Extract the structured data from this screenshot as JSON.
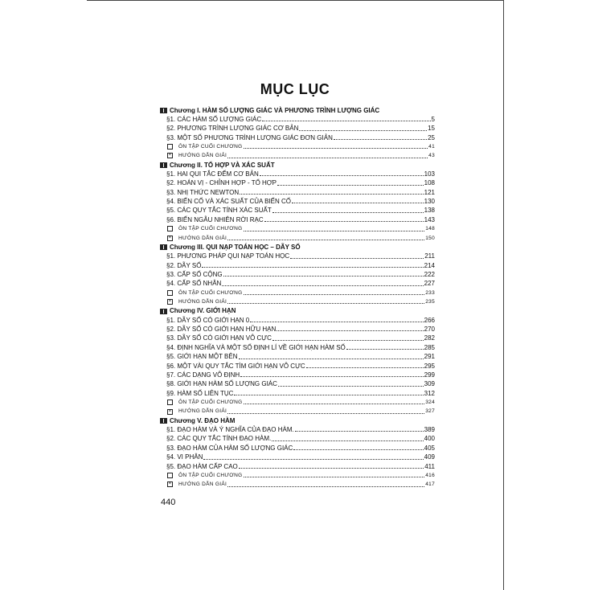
{
  "title": "MỤC LỤC",
  "page_number": "440",
  "chapters": [
    {
      "title": "Chương I. HÀM SỐ LƯỢNG GIÁC VÀ PHƯƠNG TRÌNH LƯỢNG GIÁC",
      "entries": [
        {
          "type": "section",
          "label": "§1. CÁC HÀM SỐ LƯỢNG GIÁC",
          "page": "5"
        },
        {
          "type": "section",
          "label": "§2. PHƯƠNG TRÌNH LƯỢNG GIÁC CƠ BẢN",
          "page": "15"
        },
        {
          "type": "section",
          "label": "§3. MỘT SỐ PHƯƠNG TRÌNH LƯỢNG GIÁC ĐƠN GIẢN",
          "page": "25"
        },
        {
          "type": "review",
          "label": "ÔN TẬP CUỐI CHƯƠNG",
          "page": "41"
        },
        {
          "type": "solution",
          "label": "HƯỚNG DẪN GIẢI",
          "page": "43"
        }
      ]
    },
    {
      "title": "Chương II. TỔ HỢP VÀ XÁC SUẤT",
      "entries": [
        {
          "type": "section",
          "label": "§1. HAI QUI TẮC ĐẾM CƠ BẢN",
          "page": "103"
        },
        {
          "type": "section",
          "label": "§2. HOÁN VỊ - CHỈNH HỢP - TỔ HỢP",
          "page": "108"
        },
        {
          "type": "section",
          "label": "§3. NHỊ THỨC NEWTON",
          "page": "121"
        },
        {
          "type": "section",
          "label": "§4. BIẾN CỐ VÀ XÁC SUẤT CỦA BIẾN CỐ",
          "page": "130"
        },
        {
          "type": "section",
          "label": "§5. CÁC QUY TẮC TÍNH XÁC SUẤT",
          "page": "138"
        },
        {
          "type": "section",
          "label": "§6. BIẾN NGẪU NHIÊN RỜI RẠC",
          "page": "143"
        },
        {
          "type": "review",
          "label": "ÔN TẬP CUỐI CHƯƠNG",
          "page": "148"
        },
        {
          "type": "solution",
          "label": "HƯỚNG DẪN GIẢI",
          "page": "150"
        }
      ]
    },
    {
      "title": "Chương III. QUI NẠP TOÁN HỌC – DÃY SỐ",
      "entries": [
        {
          "type": "section",
          "label": "§1. PHƯƠNG PHÁP QUI NẠP TOÁN HỌC",
          "page": "211"
        },
        {
          "type": "section",
          "label": "§2. DÃY SỐ",
          "page": "214"
        },
        {
          "type": "section",
          "label": "§3. CẤP SỐ CỘNG",
          "page": "222"
        },
        {
          "type": "section",
          "label": "§4. CẤP SỐ NHÂN",
          "page": "227"
        },
        {
          "type": "review",
          "label": "ÔN TẬP CUỐI CHƯƠNG",
          "page": "233"
        },
        {
          "type": "solution",
          "label": "HƯỚNG DẪN GIẢI",
          "page": "235"
        }
      ]
    },
    {
      "title": "Chương IV. GIỚI HẠN",
      "entries": [
        {
          "type": "section",
          "label": "§1. DÃY SỐ CÓ GIỚI HẠN 0",
          "page": "266"
        },
        {
          "type": "section",
          "label": "§2. DÃY SỐ CÓ GIỚI HẠN HỮU HẠN",
          "page": "270"
        },
        {
          "type": "section",
          "label": "§3. DÃY SỐ CÓ GIỚI HẠN VÔ CỰC",
          "page": "282"
        },
        {
          "type": "section",
          "label": "§4. ĐỊNH NGHĨA VÀ MỘT SỐ ĐỊNH LÍ VỀ GIỚI HẠN HÀM SỐ",
          "page": "285"
        },
        {
          "type": "section",
          "label": "§5. GIỚI HẠN MỘT BÊN",
          "page": "291"
        },
        {
          "type": "section",
          "label": "§6. MỘT VÀI QUY TẮC TÌM GIỚI HẠN VÔ CỰC",
          "page": "295"
        },
        {
          "type": "section",
          "label": "§7. CÁC DẠNG VÔ ĐỊNH",
          "page": "299"
        },
        {
          "type": "section",
          "label": "§8. GIỚI HẠN HÀM SỐ LƯỢNG GIÁC",
          "page": "309"
        },
        {
          "type": "section",
          "label": "§9. HÀM SỐ LIÊN TỤC",
          "page": "312"
        },
        {
          "type": "review",
          "label": "ÔN TẬP CUỐI CHƯƠNG",
          "page": "324"
        },
        {
          "type": "solution",
          "label": "HƯỚNG DẪN GIẢI",
          "page": "327"
        }
      ]
    },
    {
      "title": "Chương V. ĐẠO HÀM",
      "entries": [
        {
          "type": "section",
          "label": "§1. ĐẠO HÀM VÀ Ý NGHĨA CỦA ĐẠO HÀM.",
          "page": "389"
        },
        {
          "type": "section",
          "label": "§2. CÁC QUY TẮC TÍNH ĐẠO HÀM.",
          "page": "400"
        },
        {
          "type": "section",
          "label": "§3. ĐẠO HÀM CỦA HÀM SỐ LƯỢNG GIÁC",
          "page": "405"
        },
        {
          "type": "section",
          "label": "§4. VI PHÂN",
          "page": "409"
        },
        {
          "type": "section",
          "label": "§5. ĐẠO HÀM CẤP CAO",
          "page": "411"
        },
        {
          "type": "review",
          "label": "ÔN TẬP CUỐI CHƯƠNG",
          "page": "416"
        },
        {
          "type": "solution",
          "label": "HƯỚNG DẪN GIẢI",
          "page": "417"
        }
      ]
    }
  ],
  "icons": {
    "chapter": "book-icon",
    "review": "empty-box-icon",
    "solution": "checked-box-icon"
  }
}
